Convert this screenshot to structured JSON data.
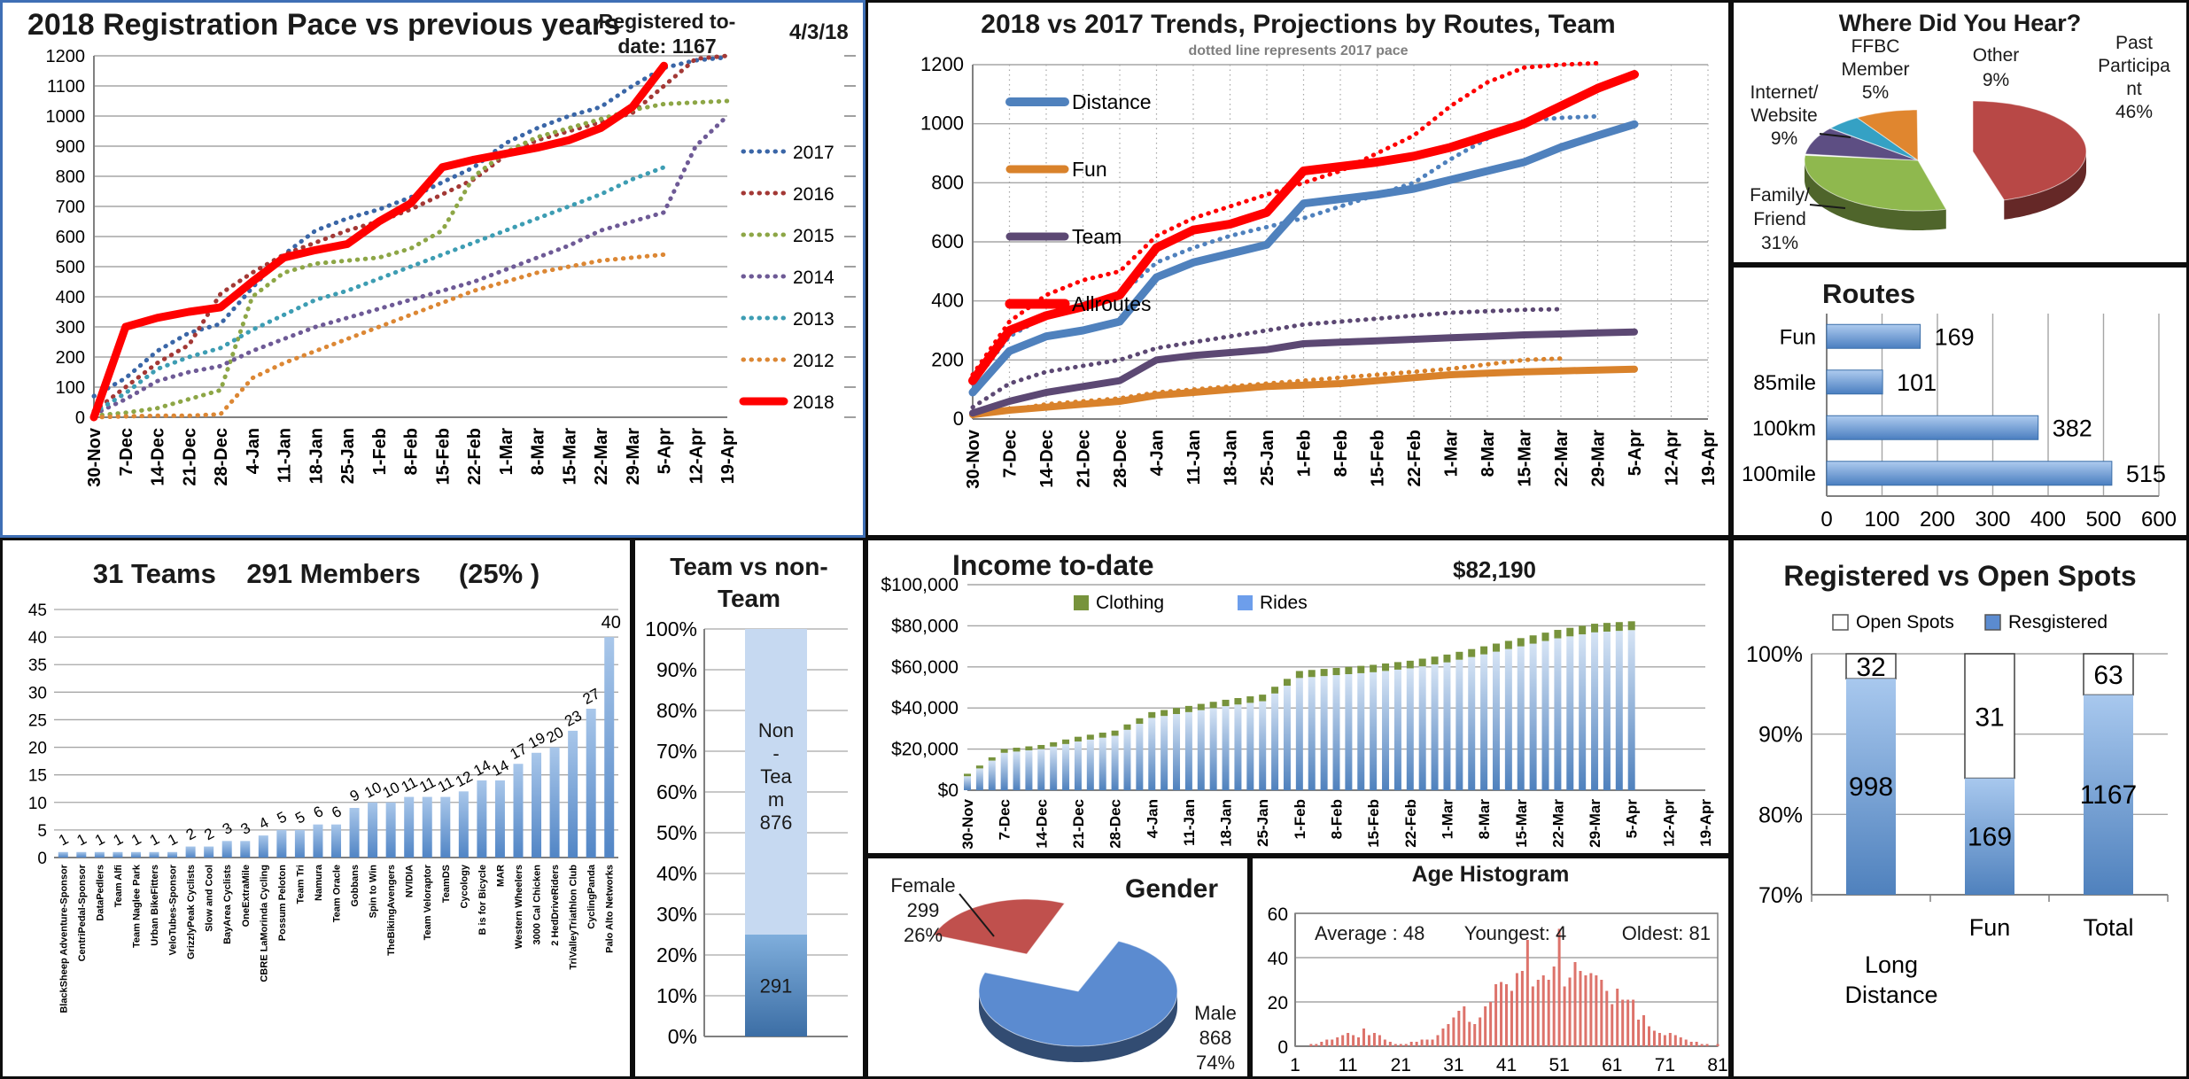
{
  "date_labels": [
    "30-Nov",
    "7-Dec",
    "14-Dec",
    "21-Dec",
    "28-Dec",
    "4-Jan",
    "11-Jan",
    "18-Jan",
    "25-Jan",
    "1-Feb",
    "8-Feb",
    "15-Feb",
    "22-Feb",
    "1-Mar",
    "8-Mar",
    "15-Mar",
    "22-Mar",
    "29-Mar",
    "5-Apr",
    "12-Apr",
    "19-Apr"
  ],
  "panels": {
    "registration": {
      "note_line1": "Registered to-",
      "note_line2": "date: 1167",
      "date_note": "4/3/18"
    }
  },
  "chart_data": [
    {
      "id": "registration_pace",
      "type": "line",
      "title": "2018 Registration Pace vs previous years",
      "annotations": [
        "Registered to-date: 1167",
        "4/3/18"
      ],
      "ylim": [
        0,
        1200
      ],
      "ytick_step": 100,
      "grid": "horizontal",
      "legend_position": "right",
      "series": [
        {
          "name": "2017",
          "color": "#3A66A7",
          "style": "dotted",
          "values": [
            70,
            130,
            220,
            280,
            310,
            430,
            540,
            620,
            660,
            690,
            730,
            780,
            830,
            910,
            960,
            1000,
            1030,
            1100,
            1160,
            1185,
            1195
          ]
        },
        {
          "name": "2016",
          "color": "#A33835",
          "style": "dotted",
          "values": [
            20,
            100,
            180,
            240,
            410,
            480,
            540,
            580,
            620,
            650,
            690,
            740,
            790,
            870,
            920,
            950,
            980,
            1010,
            1100,
            1190,
            1200
          ]
        },
        {
          "name": "2015",
          "color": "#8DA646",
          "style": "dotted",
          "values": [
            5,
            15,
            30,
            60,
            90,
            400,
            480,
            510,
            520,
            530,
            560,
            620,
            800,
            880,
            930,
            960,
            990,
            1020,
            1040,
            1045,
            1050
          ]
        },
        {
          "name": "2014",
          "color": "#6E5A96",
          "style": "dotted",
          "values": [
            10,
            60,
            120,
            150,
            170,
            220,
            260,
            300,
            330,
            360,
            390,
            420,
            450,
            490,
            530,
            570,
            620,
            650,
            680,
            900,
            1000
          ]
        },
        {
          "name": "2013",
          "color": "#3D9DB3",
          "style": "dotted",
          "values": [
            15,
            80,
            160,
            200,
            230,
            290,
            340,
            390,
            420,
            460,
            500,
            540,
            580,
            620,
            660,
            700,
            740,
            790,
            830,
            null,
            null
          ]
        },
        {
          "name": "2012",
          "color": "#DC8734",
          "style": "dotted",
          "values": [
            0,
            3,
            5,
            5,
            10,
            130,
            180,
            220,
            260,
            300,
            340,
            380,
            420,
            450,
            480,
            500,
            520,
            530,
            540,
            null,
            null
          ]
        },
        {
          "name": "2018",
          "color": "#FF0000",
          "style": "solid",
          "width": 9,
          "values": [
            0,
            300,
            330,
            350,
            365,
            450,
            530,
            555,
            575,
            650,
            710,
            830,
            855,
            875,
            895,
            920,
            960,
            1030,
            1167,
            null,
            null
          ]
        }
      ]
    },
    {
      "id": "trends",
      "type": "line",
      "title": "2018 vs 2017 Trends, Projections by Routes, Team",
      "subtitle": "dotted line represents 2017 pace",
      "ylim": [
        0,
        1200
      ],
      "ytick_step": 200,
      "grid": "both",
      "legend_position": "inside",
      "series": [
        {
          "name": "Distance",
          "color": "#4F81BD",
          "style": "solid",
          "width": 9,
          "values": [
            90,
            230,
            280,
            300,
            330,
            480,
            530,
            560,
            590,
            730,
            745,
            760,
            780,
            810,
            840,
            870,
            920,
            960,
            998,
            null,
            null
          ]
        },
        {
          "name": "Fun",
          "color": "#D9822B",
          "style": "solid",
          "width": 8,
          "values": [
            15,
            30,
            40,
            50,
            60,
            80,
            90,
            100,
            110,
            115,
            120,
            130,
            140,
            150,
            155,
            160,
            163,
            166,
            169,
            null,
            null
          ]
        },
        {
          "name": "Team",
          "color": "#5C4873",
          "style": "solid",
          "width": 8,
          "values": [
            20,
            60,
            90,
            110,
            130,
            200,
            215,
            225,
            235,
            255,
            260,
            265,
            270,
            275,
            280,
            285,
            288,
            292,
            295,
            null,
            null
          ]
        },
        {
          "name": "Allroutes",
          "color": "#FF0000",
          "style": "solid",
          "width": 10,
          "values": [
            130,
            300,
            350,
            380,
            420,
            580,
            640,
            660,
            700,
            840,
            855,
            870,
            890,
            920,
            960,
            1000,
            1060,
            1120,
            1167,
            null,
            null
          ]
        },
        {
          "name": "Distance 2017",
          "color": "#4F81BD",
          "style": "dotted",
          "legend": false,
          "values": [
            120,
            280,
            350,
            390,
            420,
            530,
            580,
            620,
            650,
            680,
            720,
            760,
            800,
            880,
            950,
            1010,
            1020,
            1025,
            null,
            null,
            null
          ]
        },
        {
          "name": "Fun 2017",
          "color": "#D9822B",
          "style": "dotted",
          "legend": false,
          "values": [
            10,
            30,
            50,
            60,
            70,
            90,
            100,
            110,
            120,
            130,
            140,
            150,
            160,
            170,
            185,
            200,
            205,
            null,
            null,
            null,
            null
          ]
        },
        {
          "name": "Team 2017",
          "color": "#5C4873",
          "style": "dotted",
          "legend": false,
          "values": [
            40,
            120,
            160,
            180,
            200,
            240,
            260,
            280,
            300,
            320,
            330,
            340,
            350,
            360,
            365,
            370,
            372,
            null,
            null,
            null,
            null
          ]
        },
        {
          "name": "Allroutes 2017",
          "color": "#FF0000",
          "style": "dotted",
          "legend": false,
          "values": [
            150,
            330,
            420,
            470,
            500,
            620,
            680,
            720,
            760,
            800,
            840,
            900,
            960,
            1060,
            1140,
            1190,
            1200,
            1205,
            null,
            null,
            null
          ]
        }
      ]
    },
    {
      "id": "hear",
      "type": "pie",
      "title": "Where Did You Hear?",
      "slices": [
        {
          "label": "Past Participant",
          "pct": 46,
          "color": "#B84846",
          "exploded": true,
          "label_lines": [
            "Past",
            "Participa",
            "nt",
            "46%"
          ]
        },
        {
          "label": "Family/Friend",
          "pct": 31,
          "color": "#8FB84E",
          "label_lines": [
            "Family/",
            "Friend",
            "31%"
          ]
        },
        {
          "label": "Internet/Website",
          "pct": 9,
          "color": "#5D4E83",
          "label_lines": [
            "Internet/",
            "Website",
            "9%"
          ]
        },
        {
          "label": "FFBC Member",
          "pct": 5,
          "color": "#35A1C4",
          "label_lines": [
            "FFBC",
            "Member",
            "5%"
          ]
        },
        {
          "label": "Other",
          "pct": 9,
          "color": "#E0862F",
          "label_lines": [
            "Other",
            "9%"
          ]
        }
      ]
    },
    {
      "id": "routes",
      "type": "bar-h",
      "title": "Routes",
      "categories": [
        "Fun",
        "85mile",
        "100km",
        "100mile"
      ],
      "values": [
        169,
        101,
        382,
        515
      ],
      "xlim": [
        0,
        600
      ],
      "xtick_step": 100
    },
    {
      "id": "teams",
      "type": "bar-v",
      "title_parts": [
        "31 Teams",
        "291 Members",
        "(25% )"
      ],
      "categories": [
        "BlackSheep Adventure-Sponsor",
        "CentriPedal-Sponsor",
        "DataPedlers",
        "Team Alfi",
        "Team Naglee Park",
        "Urban BikeFitters",
        "VeloTubes-Sponsor",
        "GrizzlyPeak Cyclists",
        "Slow and Cool",
        "BayArea Cyclists",
        "OneExtraMile",
        "CBRE LaMorinda Cycling",
        "Possum Peloton",
        "Team Tri",
        "Namura",
        "Team Oracle",
        "Gobbans",
        "Spin to Win",
        "TheBikingAvengers",
        "NVIDIA",
        "Team Veloraptor",
        "TeamDS",
        "Cycology",
        "B is for Bicycle",
        "MAR",
        "Western Wheelers",
        "3000 Cal Chicken",
        "2 HedDriveRiders",
        "TriValleyTriathlon Club",
        "CyclingPanda",
        "Palo Alto Networks"
      ],
      "values": [
        1,
        1,
        1,
        1,
        1,
        1,
        1,
        2,
        2,
        3,
        3,
        4,
        5,
        5,
        6,
        6,
        9,
        10,
        10,
        11,
        11,
        11,
        12,
        14,
        14,
        17,
        19,
        20,
        23,
        27,
        40
      ],
      "ylim": [
        0,
        45
      ],
      "ytick_step": 5
    },
    {
      "id": "team_vs",
      "type": "stacked-100",
      "title_lines": [
        "Team vs non-",
        "Team"
      ],
      "bottom": {
        "label": "Team",
        "value": 291,
        "pct": 25
      },
      "top": {
        "label": "Non-Team",
        "value": 876,
        "pct": 75,
        "label_lines": [
          "Non",
          "-",
          "Tea",
          "m",
          "876"
        ]
      },
      "ytick_step": 10
    },
    {
      "id": "income",
      "type": "income-bars",
      "title": "Income to-date",
      "total_label": "$82,190",
      "legend": [
        {
          "name": "Clothing",
          "color": "#77933C"
        },
        {
          "name": "Rides",
          "color": "#6D9EEB"
        }
      ],
      "ylim": [
        0,
        100000
      ],
      "ytick_labels": [
        "$0",
        "$20,000",
        "$40,000",
        "$60,000",
        "$80,000",
        "$100,000"
      ],
      "anchors_total": [
        8000,
        20000,
        22000,
        26000,
        29000,
        38000,
        41000,
        44000,
        46500,
        58000,
        59500,
        61000,
        63000,
        66000,
        70000,
        74000,
        78000,
        81000,
        82190
      ],
      "anchors_clothing": [
        1200,
        1800,
        2000,
        2300,
        2500,
        2800,
        3000,
        3100,
        3200,
        3400,
        3500,
        3600,
        3700,
        3800,
        3900,
        4000,
        4100,
        4200,
        4300
      ]
    },
    {
      "id": "gender",
      "type": "pie",
      "title": "Gender",
      "slices": [
        {
          "label": "Male",
          "value": 868,
          "pct": 74,
          "color": "#5B8BD0",
          "label_lines": [
            "Male",
            "868",
            "74%"
          ]
        },
        {
          "label": "Female",
          "value": 299,
          "pct": 26,
          "color": "#C0504D",
          "exploded": true,
          "label_lines": [
            "Female",
            "299",
            "26%"
          ]
        }
      ]
    },
    {
      "id": "age",
      "type": "histogram",
      "title": "Age Histogram",
      "stats": [
        "Average : 48",
        "Youngest: 4",
        "Oldest: 81"
      ],
      "ylim": [
        0,
        60
      ],
      "yticks": [
        0,
        20,
        40,
        60
      ],
      "xticks": [
        1,
        11,
        21,
        31,
        41,
        51,
        61,
        71,
        81
      ],
      "bar_color": "#DD736B",
      "values": [
        0,
        0,
        0,
        1,
        1,
        2,
        3,
        3,
        4,
        5,
        6,
        5,
        4,
        8,
        5,
        6,
        5,
        3,
        2,
        1,
        1,
        1,
        2,
        2,
        3,
        3,
        3,
        5,
        8,
        10,
        13,
        16,
        18,
        11,
        10,
        13,
        18,
        20,
        28,
        29,
        28,
        25,
        33,
        34,
        48,
        27,
        30,
        32,
        30,
        36,
        53,
        27,
        31,
        38,
        34,
        32,
        33,
        32,
        30,
        25,
        19,
        26,
        21,
        21,
        21,
        12,
        14,
        9,
        7,
        6,
        5,
        6,
        5,
        4,
        3,
        2,
        2,
        1,
        1,
        0,
        1
      ]
    },
    {
      "id": "reg_open",
      "type": "stacked-pct",
      "title": "Registered vs Open Spots",
      "legend": [
        {
          "name": "Open Spots",
          "color": "#FFFFFF"
        },
        {
          "name": "Resgistered",
          "color": "#5B8BD0"
        }
      ],
      "categories": [
        "Long Distance",
        "Fun",
        "Total"
      ],
      "registered": [
        998,
        169,
        1167
      ],
      "open": [
        32,
        31,
        63
      ],
      "ylim": [
        70,
        100
      ],
      "ytick_step": 10
    }
  ]
}
